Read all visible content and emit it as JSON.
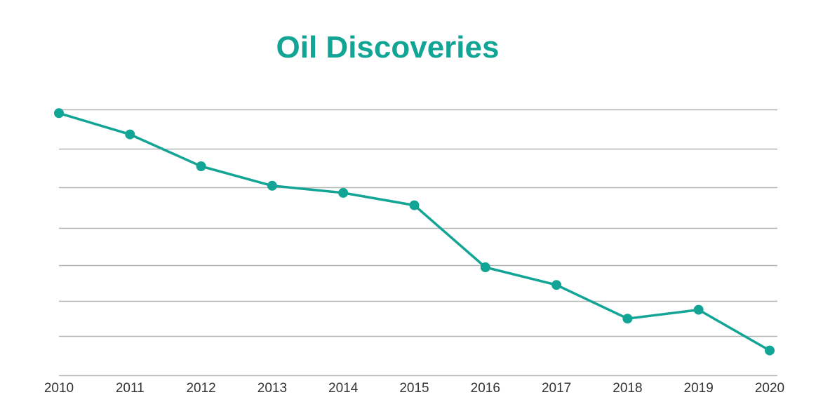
{
  "colors": {
    "accent": "#12a595",
    "grid": "#b3b3b3",
    "tick_text": "#333333"
  },
  "chart_data": {
    "type": "line",
    "title": "Oil Discoveries",
    "xlabel": "",
    "ylabel": "",
    "x": [
      "2010",
      "2011",
      "2012",
      "2013",
      "2014",
      "2015",
      "2016",
      "2017",
      "2018",
      "2019",
      "2020"
    ],
    "series": [
      {
        "values": [
          94,
          88,
          79,
          73.5,
          71.5,
          68,
          50.5,
          45.5,
          36,
          38.5,
          27
        ]
      }
    ],
    "ylim": [
      20,
      99
    ],
    "grid": true,
    "gridlines_y": [
      20,
      31,
      41,
      51,
      61.5,
      73,
      84,
      95
    ],
    "y_tick_labels_shown": false,
    "legend": "none"
  }
}
